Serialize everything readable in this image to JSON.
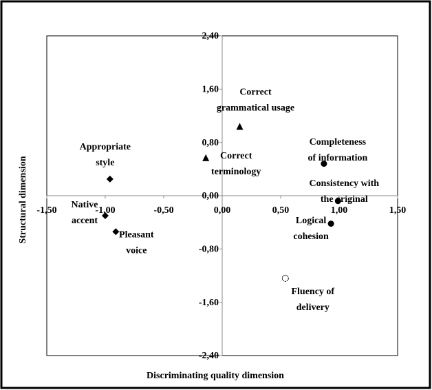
{
  "chart_data": {
    "type": "scatter",
    "x_label": "Discriminating quality dimension",
    "y_label": "Structural dimension",
    "xlim": [
      -1.5,
      1.5
    ],
    "ylim": [
      -2.4,
      2.4
    ],
    "xticks": [
      {
        "value": -1.5,
        "label": "-1,50"
      },
      {
        "value": -1,
        "label": "-1,00"
      },
      {
        "value": -0.5,
        "label": "-0,50"
      },
      {
        "value": 0,
        "label": "0,00"
      },
      {
        "value": 0.5,
        "label": "0,50"
      },
      {
        "value": 1,
        "label": "1,00"
      },
      {
        "value": 1.5,
        "label": "1,50"
      }
    ],
    "yticks": [
      {
        "value": 2.4,
        "label": "2,40"
      },
      {
        "value": 1.6,
        "label": "1,60"
      },
      {
        "value": 0.8,
        "label": "0,80"
      },
      {
        "value": 0,
        "label": "0,00"
      },
      {
        "value": -0.8,
        "label": "-0,80"
      },
      {
        "value": -1.6,
        "label": "-1,60"
      },
      {
        "value": -2.4,
        "label": "-2,40"
      }
    ],
    "color": "#000000",
    "points": [
      {
        "label": [
          "Appropriate",
          "style"
        ],
        "x": -0.96,
        "y": 0.25,
        "marker": "diamond"
      },
      {
        "label": [
          "Native",
          "accent"
        ],
        "x": -1.0,
        "y": -0.3,
        "marker": "diamond"
      },
      {
        "label": [
          "Pleasant",
          "voice"
        ],
        "x": -0.91,
        "y": -0.54,
        "marker": "diamond"
      },
      {
        "label": [
          "Correct",
          "grammatical usage"
        ],
        "x": 0.15,
        "y": 1.03,
        "marker": "triangle"
      },
      {
        "label": [
          "Correct",
          "terminology"
        ],
        "x": -0.14,
        "y": 0.56,
        "marker": "triangle"
      },
      {
        "label": [
          "Completeness",
          "of information"
        ],
        "x": 0.87,
        "y": 0.48,
        "marker": "circle"
      },
      {
        "label": [
          "Consistency with",
          "the original"
        ],
        "x": 0.99,
        "y": -0.08,
        "marker": "circle"
      },
      {
        "label": [
          "Logical",
          "cohesion"
        ],
        "x": 0.93,
        "y": -0.42,
        "marker": "circle"
      },
      {
        "label": [
          "Fluency of",
          "delivery"
        ],
        "x": 0.54,
        "y": -1.24,
        "marker": "open-circle"
      }
    ]
  }
}
